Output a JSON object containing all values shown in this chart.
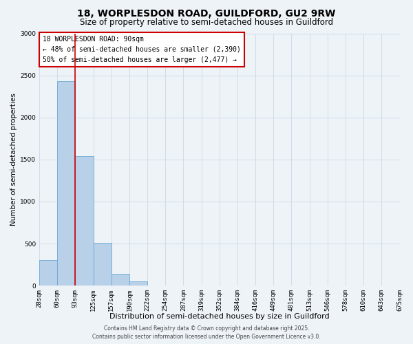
{
  "title_line1": "18, WORPLESDON ROAD, GUILDFORD, GU2 9RW",
  "title_line2": "Size of property relative to semi-detached houses in Guildford",
  "bar_heights": [
    300,
    2430,
    1540,
    510,
    140,
    50,
    0,
    0,
    0,
    0,
    0,
    0,
    0,
    0,
    0,
    0,
    0,
    0,
    0,
    0
  ],
  "bin_labels": [
    "28sqm",
    "60sqm",
    "93sqm",
    "125sqm",
    "157sqm",
    "190sqm",
    "222sqm",
    "254sqm",
    "287sqm",
    "319sqm",
    "352sqm",
    "384sqm",
    "416sqm",
    "449sqm",
    "481sqm",
    "513sqm",
    "546sqm",
    "578sqm",
    "610sqm",
    "643sqm",
    "675sqm"
  ],
  "n_bins": 20,
  "bar_color": "#b8d0e8",
  "bar_edge_color": "#6aaad4",
  "grid_color": "#d0dce8",
  "background_color": "#eef3f8",
  "plot_bg_color": "#eef3f8",
  "ylabel": "Number of semi-detached properties",
  "xlabel": "Distribution of semi-detached houses by size in Guildford",
  "ylim": [
    0,
    3000
  ],
  "yticks": [
    0,
    500,
    1000,
    1500,
    2000,
    2500,
    3000
  ],
  "vline_x": 2,
  "vline_color": "#cc0000",
  "annotation_title": "18 WORPLESDON ROAD: 90sqm",
  "annotation_line2": "← 48% of semi-detached houses are smaller (2,390)",
  "annotation_line3": "50% of semi-detached houses are larger (2,477) →",
  "annotation_box_color": "#ffffff",
  "annotation_box_edge": "#cc0000",
  "footer_line1": "Contains HM Land Registry data © Crown copyright and database right 2025.",
  "footer_line2": "Contains public sector information licensed under the Open Government Licence v3.0.",
  "title_fontsize": 10,
  "subtitle_fontsize": 8.5,
  "axis_label_fontsize": 7.5,
  "tick_fontsize": 6.5,
  "annotation_fontsize": 7,
  "footer_fontsize": 5.5
}
